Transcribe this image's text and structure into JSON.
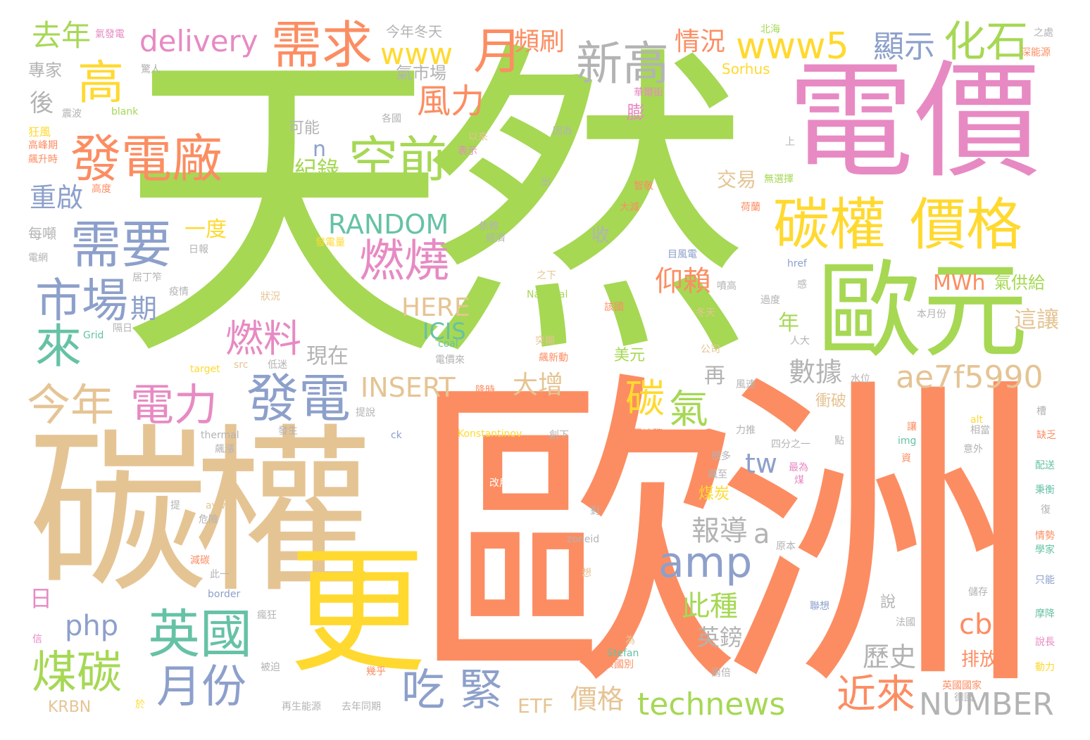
{
  "palette": {
    "green": "#a6d854",
    "orange": "#fc8d62",
    "pink": "#e78ac3",
    "tan": "#e5c494",
    "yellow": "#ffd92f",
    "blue": "#8da0cb",
    "teal": "#66c2a5",
    "gray": "#b3b3b3"
  },
  "words": {
    "w000": "天然",
    "w001": "歐洲",
    "w002": "碳權",
    "w003": "電價",
    "w004": "歐元",
    "w005": "更",
    "w006": "碳權",
    "w007": "價格",
    "w008": "需求",
    "w009": "發電廠",
    "w010": "新高",
    "w011": "空前",
    "w012": "發電",
    "w013": "需要",
    "w014": "市場",
    "w015": "燃燒",
    "w016": "英國",
    "w017": "月份",
    "w018": "煤碳",
    "w019": "電力",
    "w020": "今年",
    "w021": "吃",
    "w022": "緊",
    "w023": "amp",
    "w024": "technews",
    "w025": "NUMBER",
    "w026": "ae7f5990",
    "w027": "www5",
    "w028": "www",
    "w029": "化石",
    "w030": "delivery",
    "w031": "去年",
    "w032": "月",
    "w033": "高",
    "w034": "來",
    "w035": "碳",
    "w036": "氣",
    "w037": "INSERT",
    "w038": "RANDOM",
    "w039": "HERE",
    "w040": "燃料",
    "w041": "風力",
    "w042": "近來",
    "w043": "php",
    "w044": "cb",
    "w045": "此種",
    "w046": "報導",
    "w047": "歷史",
    "w048": "數據",
    "w049": "顯示",
    "w050": "頻刷",
    "w051": "情況",
    "w052": "仰賴",
    "w053": "大增",
    "w054": "價格",
    "w055": "英鎊",
    "w056": "重啟",
    "w057": "紀錄",
    "w058": "MWh",
    "w059": "ICIS",
    "w060": "tw",
    "w061": "a",
    "w062": "n",
    "w063": "期",
    "w064": "日",
    "w065": "後",
    "w066": "交易",
    "w067": "這讓",
    "w068": "氣供給",
    "w069": "現在",
    "w070": "一度",
    "w071": "再",
    "w072": "年",
    "w073": "排放",
    "w074": "ETF",
    "w075": "KRBN",
    "w076": "專家",
    "w077": "今年冬天",
    "w078": "氣市場",
    "w079": "Sorhus",
    "w080": "可能",
    "w081": "收",
    "w082": "美元",
    "w083": "膨",
    "w084": "衝破",
    "w085": "說",
    "w086": "煤炭",
    "w087": "每噸",
    "w088": "氣發電",
    "w089": "北海",
    "w090": "之處",
    "w091": "深能源",
    "w092": "華爾街",
    "w093": "因為",
    "w094": "以來",
    "w095": "表示",
    "w096": "各國",
    "w097": "blank",
    "w098": "震波",
    "w099": "驚人",
    "w100": "狂風",
    "w101": "高峰期",
    "w102": "飆升時",
    "w103": "高度",
    "w104": "電網",
    "w105": "日報",
    "w106": "居丁笮",
    "w107": "疫情",
    "w108": "狀況",
    "w109": "隔日",
    "w110": "Grid",
    "w111": "target",
    "w112": "src",
    "w113": "低迷",
    "w114": "coal",
    "w115": "電價來",
    "w116": "突顯",
    "w117": "飆新動",
    "w118": "降時",
    "w119": "提說",
    "w120": "thermal",
    "w121": "飆漲",
    "w122": "發生",
    "w123": "ck",
    "w124": "Konstantinov",
    "w125": "創下",
    "w126": "週風速際",
    "w127": "力推",
    "w128": "四分之一",
    "w129": "點",
    "w130": "很多",
    "w131": "飆至",
    "w132": "最為",
    "w133": "煤",
    "w134": "改用",
    "w135": "提",
    "w136": "avw",
    "w137": "對",
    "w138": "危險",
    "w139": "zoneid",
    "w140": "原本",
    "w141": "減碳",
    "w142": "此一",
    "w143": "border",
    "w144": "想",
    "w145": "瘋狂",
    "w146": "被迫",
    "w147": "幾乎",
    "w148": "Stefan",
    "w149": "為",
    "w150": "該國別",
    "w151": "兩倍",
    "w152": "法國",
    "w153": "英國國家",
    "w154": "德國",
    "w155": "再生能源",
    "w156": "去年同期",
    "w157": "於",
    "w158": "信",
    "w159": "出",
    "w160": "上",
    "w161": "無選擇",
    "w162": "智敬",
    "w163": "大減",
    "w164": "荷蘭",
    "w165": "依賴",
    "w166": "經濟",
    "w167": "發電量",
    "w168": "目風電",
    "w169": "之下",
    "w170": "National",
    "w171": "噴高",
    "w172": "冬天",
    "w173": "該國",
    "w174": "過度",
    "w175": "href",
    "w176": "感",
    "w177": "本月份",
    "w178": "人大",
    "w179": "公司",
    "w180": "風速",
    "w181": "水位",
    "w182": "讓",
    "w183": "img",
    "w184": "資",
    "w185": "alt",
    "w186": "相當",
    "w187": "槽",
    "w188": "缺乏",
    "w189": "意外",
    "w190": "配送",
    "w191": "秉衡",
    "w192": "復",
    "w193": "情勢",
    "w194": "學家",
    "w195": "只能",
    "w196": "儲存",
    "w197": "聯想",
    "w198": "摩降",
    "w199": "說長",
    "w200": "動力"
  }
}
